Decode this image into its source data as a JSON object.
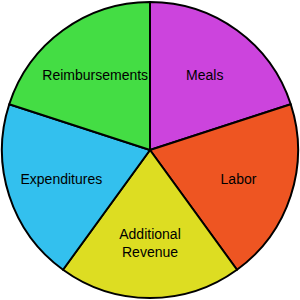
{
  "chart_data": {
    "type": "pie",
    "categories": [
      "Meals",
      "Labor",
      "Additional Revenue",
      "Expenditures",
      "Reimbursements"
    ],
    "values": [
      20,
      20,
      20,
      20,
      20
    ],
    "colors": [
      "#cc44dd",
      "#ee5522",
      "#dddd22",
      "#33c0ee",
      "#44dd44"
    ]
  }
}
